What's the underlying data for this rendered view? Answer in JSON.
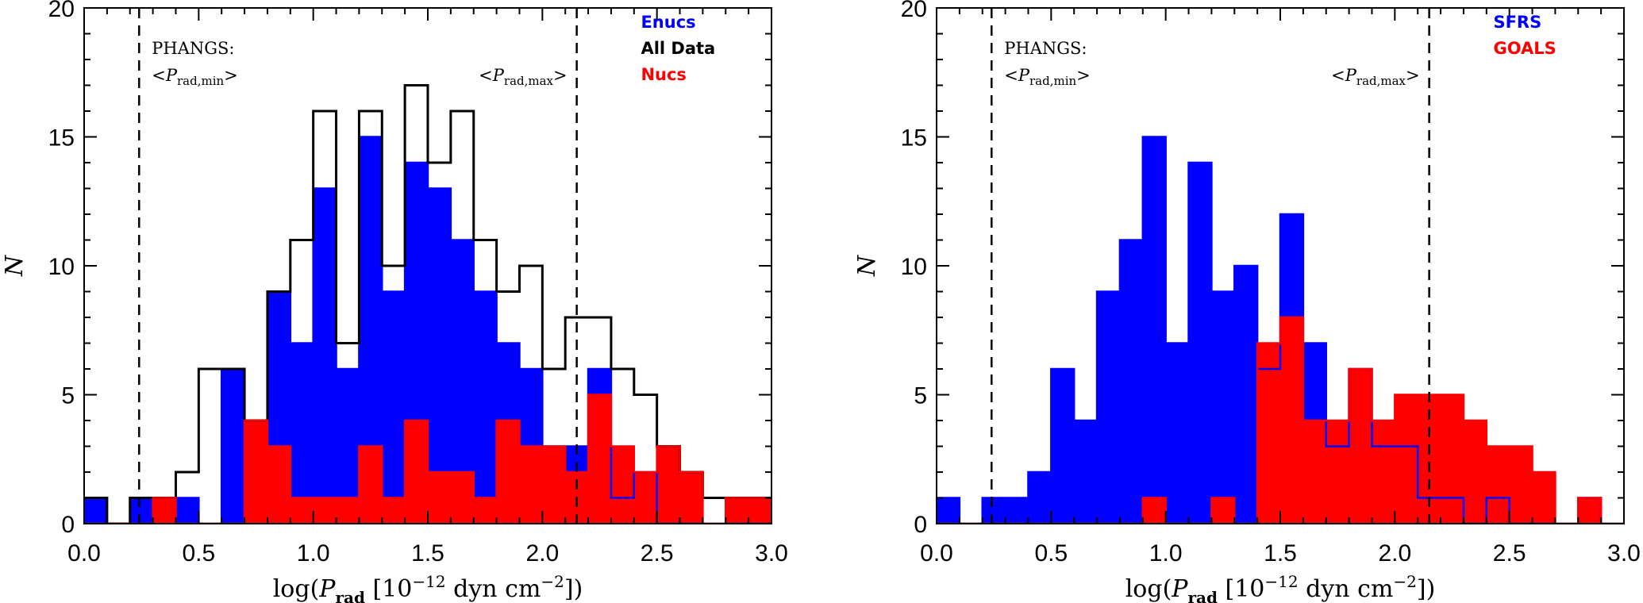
{
  "chart_data": [
    {
      "type": "histogram",
      "id": "left",
      "xlabel_prefix": "log(",
      "xlabel_var": "P",
      "xlabel_sub": "rad",
      "xlabel_unit": " [10",
      "xlabel_exp1": "−12",
      "xlabel_unit2": " dyn cm",
      "xlabel_exp2": "−2",
      "xlabel_suffix": "])",
      "ylabel": "N",
      "xlim": [
        0.0,
        3.0
      ],
      "ylim": [
        0,
        20
      ],
      "xticks": [
        "0.0",
        "0.5",
        "1.0",
        "1.5",
        "2.0",
        "2.5",
        "3.0"
      ],
      "yticks": [
        "0",
        "5",
        "10",
        "15",
        "20"
      ],
      "bin_start": 0.0,
      "bin_width": 0.1,
      "vlines": [
        0.24,
        2.15
      ],
      "annotation_title": "PHANGS:",
      "annotation_min": "<P",
      "annotation_min_sub": "rad,min",
      "annotation_max": "<P",
      "annotation_max_sub": "rad,max",
      "legend": [
        {
          "label": "Enucs",
          "color": "#0000ff"
        },
        {
          "label": "All Data",
          "color": "#000000"
        },
        {
          "label": "Nucs",
          "color": "#ff0000"
        }
      ],
      "series": [
        {
          "name": "Enucs",
          "style": "filled",
          "color": "#0000ff",
          "values": [
            1,
            0,
            1,
            1,
            1,
            0,
            6,
            4,
            9,
            7,
            13,
            6,
            15,
            9,
            14,
            13,
            11,
            9,
            7,
            6,
            3,
            3,
            6,
            1,
            2,
            0,
            0,
            0,
            0,
            0
          ]
        },
        {
          "name": "All Data",
          "style": "step",
          "color": "#000000",
          "values": [
            1,
            0,
            1,
            1,
            2,
            6,
            6,
            4,
            9,
            11,
            16,
            7,
            16,
            10,
            17,
            14,
            16,
            11,
            9,
            10,
            6,
            8,
            8,
            6,
            5,
            3,
            2,
            1,
            1,
            1
          ]
        },
        {
          "name": "Nucs",
          "style": "filled",
          "color": "#ff0000",
          "values": [
            0,
            0,
            0,
            1,
            0,
            0,
            0,
            4,
            3,
            1,
            1,
            1,
            3,
            1,
            4,
            2,
            2,
            1,
            4,
            3,
            3,
            2,
            5,
            3,
            2,
            3,
            2,
            0,
            1,
            1
          ]
        }
      ]
    },
    {
      "type": "histogram",
      "id": "right",
      "xlabel_prefix": "log(",
      "xlabel_var": "P",
      "xlabel_sub": "rad",
      "xlabel_unit": " [10",
      "xlabel_exp1": "−12",
      "xlabel_unit2": " dyn cm",
      "xlabel_exp2": "−2",
      "xlabel_suffix": "])",
      "ylabel": "N",
      "xlim": [
        0.0,
        3.0
      ],
      "ylim": [
        0,
        20
      ],
      "xticks": [
        "0.0",
        "0.5",
        "1.0",
        "1.5",
        "2.0",
        "2.5",
        "3.0"
      ],
      "yticks": [
        "0",
        "5",
        "10",
        "15",
        "20"
      ],
      "bin_start": 0.0,
      "bin_width": 0.1,
      "vlines": [
        0.24,
        2.15
      ],
      "annotation_title": "PHANGS:",
      "annotation_min": "<P",
      "annotation_min_sub": "rad,min",
      "annotation_max": "<P",
      "annotation_max_sub": "rad,max",
      "legend": [
        {
          "label": "SFRS",
          "color": "#0000ff"
        },
        {
          "label": "GOALS",
          "color": "#ff0000"
        }
      ],
      "series": [
        {
          "name": "SFRS",
          "style": "filled",
          "color": "#0000ff",
          "values": [
            1,
            0,
            1,
            1,
            2,
            6,
            4,
            9,
            11,
            15,
            7,
            14,
            9,
            10,
            6,
            12,
            7,
            3,
            6,
            3,
            3,
            1,
            1,
            0,
            1,
            0,
            0,
            0,
            1,
            0
          ]
        },
        {
          "name": "GOALS",
          "style": "filled",
          "color": "#ff0000",
          "values": [
            0,
            0,
            0,
            0,
            0,
            0,
            0,
            0,
            0,
            1,
            0,
            0,
            1,
            0,
            7,
            8,
            4,
            4,
            6,
            4,
            5,
            5,
            5,
            4,
            3,
            3,
            2,
            0,
            1,
            0
          ]
        }
      ]
    }
  ]
}
